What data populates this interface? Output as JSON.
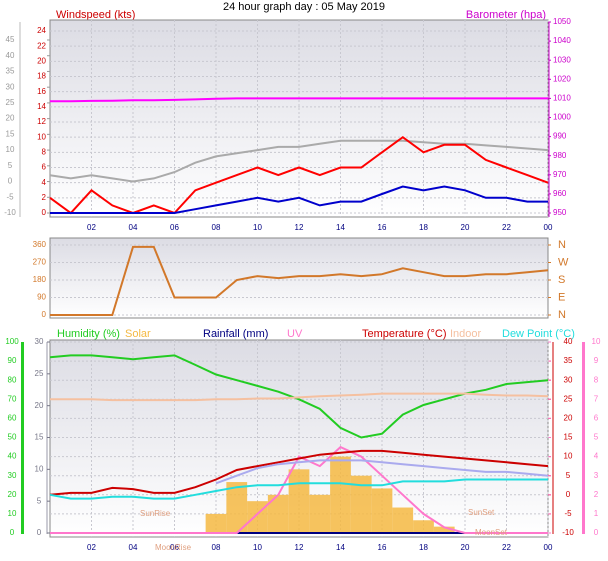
{
  "chart_data": [
    {
      "type": "line",
      "title": "24 hour graph day : 05 May 2019",
      "y_label": "Windspeed (kts)",
      "y2_label": "Barometer (hpa)",
      "x": [
        0,
        1,
        2,
        3,
        4,
        5,
        6,
        7,
        8,
        9,
        10,
        11,
        12,
        13,
        14,
        15,
        16,
        17,
        18,
        19,
        20,
        21,
        22,
        23,
        24
      ],
      "xlim": [
        0,
        24
      ],
      "xticks": [
        {
          "value": 2,
          "label": "02"
        },
        {
          "value": 4,
          "label": "04"
        },
        {
          "value": 6,
          "label": "06"
        },
        {
          "value": 8,
          "label": "08"
        },
        10,
        12,
        14,
        16,
        18,
        20,
        22,
        {
          "value": 24,
          "label": "00"
        }
      ],
      "ylim": [
        0,
        24
      ],
      "yticks": [
        0,
        2,
        4,
        6,
        8,
        10,
        12,
        14,
        16,
        18,
        20,
        22,
        24
      ],
      "y2lim": [
        950,
        1050
      ],
      "y2ticks": [
        950,
        960,
        970,
        980,
        990,
        1000,
        1010,
        1020,
        1030,
        1040,
        1050
      ],
      "y3lim": [
        -10,
        45
      ],
      "y3ticks": [
        -10,
        -5,
        0,
        5,
        10,
        15,
        20,
        25,
        30,
        35,
        40,
        45
      ],
      "grid": true,
      "series": [
        {
          "color": "#aaaaaa",
          "axis": "y3",
          "values": [
            2,
            1,
            2,
            1,
            0,
            1,
            3,
            6,
            8,
            9,
            10,
            11,
            11,
            12,
            13,
            13,
            13,
            13,
            12.5,
            12,
            12,
            11.5,
            11,
            10.5,
            10
          ]
        },
        {
          "color": "#ff0000",
          "values": [
            2,
            0,
            3,
            1,
            0,
            1,
            0,
            3,
            4,
            5,
            6,
            5,
            6,
            5,
            6,
            6,
            8,
            10,
            8,
            9,
            9,
            7,
            6,
            5,
            4
          ]
        },
        {
          "color": "#0000cc",
          "values": [
            0,
            0,
            0,
            0,
            0,
            0,
            0,
            0.5,
            1,
            1.5,
            2,
            1.5,
            2,
            1,
            1.5,
            1.5,
            2.5,
            3.5,
            3,
            3.5,
            3,
            2,
            2,
            1.5,
            1.5
          ]
        },
        {
          "color": "#ff00ff",
          "axis": "y2",
          "values": [
            1008.5,
            1008.5,
            1008.7,
            1008.8,
            1009,
            1009,
            1009.2,
            1009.5,
            1009.8,
            1010,
            1010,
            1010,
            1010,
            1010,
            1010,
            1010,
            1010,
            1010,
            1010,
            1010,
            1010,
            1010,
            1010,
            1010,
            1010
          ]
        }
      ]
    },
    {
      "type": "line",
      "x": [
        0,
        1,
        2,
        3,
        4,
        5,
        6,
        7,
        8,
        9,
        10,
        11,
        12,
        13,
        14,
        15,
        16,
        17,
        18,
        19,
        20,
        21,
        22,
        23,
        24
      ],
      "xlim": [
        0,
        24
      ],
      "ylim": [
        0,
        360
      ],
      "yticks": [
        0,
        90,
        180,
        270,
        360
      ],
      "y2lim": [
        0,
        360
      ],
      "y2ticks": [
        {
          "value": 0,
          "label": "N"
        },
        {
          "value": 90,
          "label": "E"
        },
        {
          "value": 180,
          "label": "S"
        },
        {
          "value": 270,
          "label": "W"
        },
        {
          "value": 360,
          "label": "N"
        }
      ],
      "grid": true,
      "series": [
        {
          "color": "#d2782a",
          "values": [
            0,
            0,
            0,
            0,
            350,
            350,
            90,
            90,
            90,
            180,
            200,
            190,
            200,
            200,
            210,
            200,
            210,
            240,
            220,
            200,
            200,
            210,
            210,
            220,
            230
          ]
        }
      ]
    },
    {
      "type": "line",
      "x": [
        0,
        1,
        2,
        3,
        4,
        5,
        6,
        7,
        8,
        9,
        10,
        11,
        12,
        13,
        14,
        15,
        16,
        17,
        18,
        19,
        20,
        21,
        22,
        23,
        24
      ],
      "xlim": [
        0,
        24
      ],
      "xticks": [
        {
          "value": 2,
          "label": "02"
        },
        {
          "value": 4,
          "label": "04"
        },
        {
          "value": 6,
          "label": "06"
        },
        {
          "value": 8,
          "label": "08"
        },
        10,
        12,
        14,
        16,
        18,
        20,
        22,
        {
          "value": 24,
          "label": "00"
        }
      ],
      "ylim": [
        0,
        100
      ],
      "yticks": [
        0,
        10,
        20,
        30,
        40,
        50,
        60,
        70,
        80,
        90,
        100
      ],
      "y2lim": [
        -10,
        40
      ],
      "y2ticks": [
        -10,
        -5,
        0,
        5,
        10,
        15,
        20,
        25,
        30,
        35,
        40
      ],
      "y3lim": [
        0,
        30
      ],
      "y3ticks": [
        0,
        5,
        10,
        15,
        20,
        25,
        30
      ],
      "y4lim": [
        0,
        10
      ],
      "y4ticks": [
        0,
        1,
        2,
        3,
        4,
        5,
        6,
        7,
        8,
        9,
        10
      ],
      "grid": true,
      "annotations": [
        "SunRise",
        "SunSet",
        "MoonRise",
        "MoonSet"
      ],
      "series": [
        {
          "name": "Humidity (%)",
          "color": "#22cc22",
          "values": [
            92,
            93,
            93,
            92,
            91,
            92,
            93,
            88,
            83,
            80,
            77,
            74,
            70,
            65,
            55,
            50,
            52,
            62,
            67,
            70,
            73,
            75,
            78,
            79,
            80
          ]
        },
        {
          "name": "Solar",
          "color": "#f4b942",
          "axis": "y3",
          "style": "bar",
          "values": [
            0,
            0,
            0,
            0,
            0,
            0,
            0,
            0,
            3,
            8,
            5,
            6,
            10,
            6,
            12,
            9,
            7,
            4,
            2,
            1,
            0,
            0,
            0,
            0,
            0
          ]
        },
        {
          "name": "Rainfall (mm)",
          "color": "#000080",
          "axis": "y3",
          "values": [
            0,
            0,
            0,
            0,
            0,
            0,
            0,
            0,
            0,
            0,
            0,
            0,
            0,
            0,
            0,
            0,
            0,
            0,
            0,
            0,
            0,
            0,
            0,
            0,
            0
          ]
        },
        {
          "name": "UV",
          "color": "#ff77cc",
          "axis": "y4",
          "values": [
            0,
            0,
            0,
            0,
            0,
            0,
            0,
            0,
            0,
            0,
            1,
            2,
            4,
            3.5,
            4.5,
            4,
            3,
            2,
            1,
            0.3,
            0,
            0,
            0,
            0,
            0
          ]
        },
        {
          "name": "Temperature (°C)",
          "color": "#cc0000",
          "axis": "y2",
          "values": [
            0,
            0.5,
            0.5,
            1.8,
            1.5,
            0.5,
            0.5,
            2,
            4,
            6.5,
            7.5,
            8.5,
            9.5,
            10.5,
            11,
            11.5,
            11.5,
            11,
            10.5,
            10,
            9.5,
            9,
            8.5,
            8,
            7.5
          ]
        },
        {
          "name": "Indoor",
          "color": "#f5c0a0",
          "axis": "y2",
          "values": [
            25,
            25,
            25,
            24.8,
            24.8,
            24.8,
            24.8,
            24.8,
            25,
            25,
            25.2,
            25.2,
            25.5,
            25.8,
            26,
            26.2,
            26.5,
            26.5,
            26.5,
            26.5,
            26.5,
            26.2,
            26,
            26,
            25.8
          ]
        },
        {
          "name": "Dew Point (°C)",
          "color": "#22dddd",
          "axis": "y2",
          "values": [
            0,
            -1,
            -1,
            -0.5,
            -0.5,
            -1,
            -1,
            0,
            1,
            2,
            2.5,
            2.5,
            3,
            3,
            3,
            2.5,
            2.5,
            3.5,
            3.5,
            3.5,
            4,
            4,
            4,
            4,
            4
          ]
        },
        {
          "color": "#aaaaee",
          "axis": "y2",
          "values": [
            null,
            null,
            null,
            null,
            null,
            null,
            null,
            null,
            3,
            5,
            7,
            8,
            8.5,
            9,
            9,
            9,
            8.5,
            8,
            7.5,
            7,
            6.5,
            6,
            6,
            5.5,
            5
          ]
        }
      ]
    }
  ]
}
